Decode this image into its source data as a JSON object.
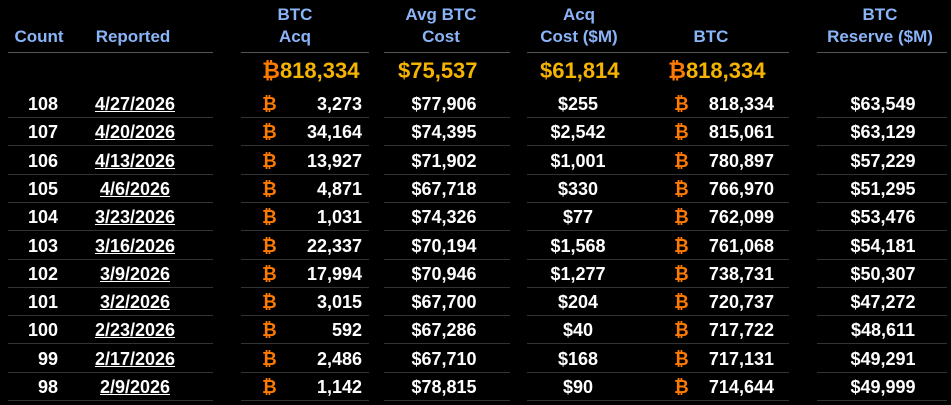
{
  "headers": {
    "count": "Count",
    "reported": "Reported",
    "btc_acq_1": "BTC",
    "btc_acq_2": "Acq",
    "avg_cost_1": "Avg BTC",
    "avg_cost_2": "Cost",
    "acq_cost_1": "Acq",
    "acq_cost_2": "Cost ($M)",
    "btc": "BTC",
    "reserve_1": "BTC",
    "reserve_2": "Reserve ($M)"
  },
  "totals": {
    "btc_acq": "₿818,334",
    "avg_cost": "$75,537",
    "acq_cost": "$61,814",
    "btc": "₿818,334"
  },
  "btc_symbol": "₿",
  "colors": {
    "header": "#8ab4f8",
    "total": "#f5b400",
    "bitcoin": "#ff7a00",
    "background": "#000000"
  },
  "rows": [
    {
      "count": "108",
      "reported": "4/27/2026",
      "btc_acq": "3,273",
      "avg_cost": "$77,906",
      "acq_cost": "$255",
      "btc": "818,334",
      "reserve": "$63,549"
    },
    {
      "count": "107",
      "reported": "4/20/2026",
      "btc_acq": "34,164",
      "avg_cost": "$74,395",
      "acq_cost": "$2,542",
      "btc": "815,061",
      "reserve": "$63,129"
    },
    {
      "count": "106",
      "reported": "4/13/2026",
      "btc_acq": "13,927",
      "avg_cost": "$71,902",
      "acq_cost": "$1,001",
      "btc": "780,897",
      "reserve": "$57,229"
    },
    {
      "count": "105",
      "reported": "4/6/2026",
      "btc_acq": "4,871",
      "avg_cost": "$67,718",
      "acq_cost": "$330",
      "btc": "766,970",
      "reserve": "$51,295"
    },
    {
      "count": "104",
      "reported": "3/23/2026",
      "btc_acq": "1,031",
      "avg_cost": "$74,326",
      "acq_cost": "$77",
      "btc": "762,099",
      "reserve": "$53,476"
    },
    {
      "count": "103",
      "reported": "3/16/2026",
      "btc_acq": "22,337",
      "avg_cost": "$70,194",
      "acq_cost": "$1,568",
      "btc": "761,068",
      "reserve": "$54,181"
    },
    {
      "count": "102",
      "reported": "3/9/2026",
      "btc_acq": "17,994",
      "avg_cost": "$70,946",
      "acq_cost": "$1,277",
      "btc": "738,731",
      "reserve": "$50,307"
    },
    {
      "count": "101",
      "reported": "3/2/2026",
      "btc_acq": "3,015",
      "avg_cost": "$67,700",
      "acq_cost": "$204",
      "btc": "720,737",
      "reserve": "$47,272"
    },
    {
      "count": "100",
      "reported": "2/23/2026",
      "btc_acq": "592",
      "avg_cost": "$67,286",
      "acq_cost": "$40",
      "btc": "717,722",
      "reserve": "$48,611"
    },
    {
      "count": "99",
      "reported": "2/17/2026",
      "btc_acq": "2,486",
      "avg_cost": "$67,710",
      "acq_cost": "$168",
      "btc": "717,131",
      "reserve": "$49,291"
    },
    {
      "count": "98",
      "reported": "2/9/2026",
      "btc_acq": "1,142",
      "avg_cost": "$78,815",
      "acq_cost": "$90",
      "btc": "714,644",
      "reserve": "$49,999"
    }
  ]
}
